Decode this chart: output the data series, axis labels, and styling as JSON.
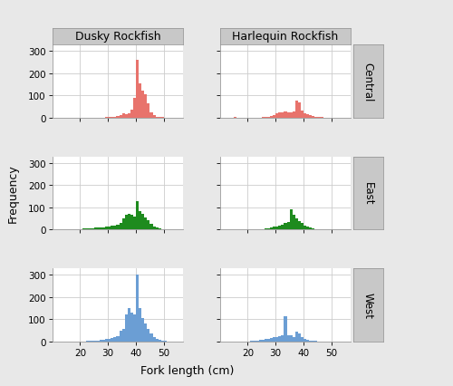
{
  "col_titles": [
    "Dusky Rockfish",
    "Harlequin Rockfish"
  ],
  "row_titles": [
    "Central",
    "East",
    "West"
  ],
  "xlabel": "Fork length (cm)",
  "ylabel": "Frequency",
  "xlim": [
    10,
    57
  ],
  "ylim": [
    0,
    330
  ],
  "yticks": [
    0,
    100,
    200,
    300
  ],
  "xticks": [
    20,
    30,
    40,
    50
  ],
  "colors": {
    "Central": "#E8736C",
    "East": "#1E8B1E",
    "West": "#6B9ED4"
  },
  "fig_bg": "#E8E8E8",
  "panel_bg": "#FFFFFF",
  "strip_bg": "#C8C8C8",
  "grid_color": "#CCCCCC",
  "histograms": {
    "Central_Dusky": {
      "bins": [
        10,
        11,
        12,
        13,
        14,
        15,
        16,
        17,
        18,
        19,
        20,
        21,
        22,
        23,
        24,
        25,
        26,
        27,
        28,
        29,
        30,
        31,
        32,
        33,
        34,
        35,
        36,
        37,
        38,
        39,
        40,
        41,
        42,
        43,
        44,
        45,
        46,
        47,
        48,
        49,
        50,
        51,
        52,
        53,
        54,
        55,
        56
      ],
      "counts": [
        0,
        0,
        0,
        0,
        0,
        0,
        0,
        0,
        0,
        0,
        0,
        0,
        0,
        0,
        0,
        0,
        0,
        0,
        0,
        2,
        3,
        4,
        5,
        8,
        12,
        18,
        15,
        20,
        35,
        90,
        260,
        155,
        120,
        105,
        65,
        25,
        12,
        5,
        3,
        2,
        1,
        0,
        0,
        0,
        0,
        0
      ]
    },
    "Central_Harlequin": {
      "bins": [
        10,
        11,
        12,
        13,
        14,
        15,
        16,
        17,
        18,
        19,
        20,
        21,
        22,
        23,
        24,
        25,
        26,
        27,
        28,
        29,
        30,
        31,
        32,
        33,
        34,
        35,
        36,
        37,
        38,
        39,
        40,
        41,
        42,
        43,
        44,
        45,
        46,
        47,
        48,
        49,
        50,
        51,
        52,
        53,
        54,
        55,
        56
      ],
      "counts": [
        0,
        0,
        0,
        0,
        0,
        3,
        0,
        0,
        0,
        0,
        0,
        0,
        0,
        0,
        0,
        3,
        4,
        5,
        8,
        12,
        18,
        22,
        25,
        28,
        25,
        25,
        28,
        78,
        68,
        30,
        20,
        15,
        12,
        8,
        5,
        3,
        2,
        1,
        0,
        0,
        0,
        0,
        0,
        0,
        0,
        0
      ]
    },
    "East_Dusky": {
      "bins": [
        10,
        11,
        12,
        13,
        14,
        15,
        16,
        17,
        18,
        19,
        20,
        21,
        22,
        23,
        24,
        25,
        26,
        27,
        28,
        29,
        30,
        31,
        32,
        33,
        34,
        35,
        36,
        37,
        38,
        39,
        40,
        41,
        42,
        43,
        44,
        45,
        46,
        47,
        48,
        49,
        50,
        51,
        52,
        53,
        54,
        55,
        56
      ],
      "counts": [
        0,
        0,
        0,
        0,
        0,
        0,
        0,
        0,
        0,
        2,
        3,
        4,
        5,
        6,
        7,
        8,
        9,
        10,
        11,
        12,
        14,
        16,
        18,
        22,
        28,
        50,
        67,
        72,
        68,
        58,
        130,
        82,
        72,
        56,
        42,
        26,
        13,
        8,
        5,
        3,
        2,
        1,
        0,
        0,
        0,
        0
      ]
    },
    "East_Harlequin": {
      "bins": [
        10,
        11,
        12,
        13,
        14,
        15,
        16,
        17,
        18,
        19,
        20,
        21,
        22,
        23,
        24,
        25,
        26,
        27,
        28,
        29,
        30,
        31,
        32,
        33,
        34,
        35,
        36,
        37,
        38,
        39,
        40,
        41,
        42,
        43,
        44,
        45,
        46,
        47,
        48,
        49,
        50,
        51,
        52,
        53,
        54,
        55,
        56
      ],
      "counts": [
        0,
        0,
        0,
        0,
        0,
        0,
        0,
        0,
        0,
        0,
        0,
        0,
        0,
        0,
        2,
        3,
        4,
        6,
        8,
        12,
        15,
        18,
        22,
        28,
        35,
        90,
        68,
        50,
        40,
        28,
        18,
        12,
        8,
        5,
        3,
        2,
        1,
        0,
        0,
        0,
        0,
        0,
        0,
        0,
        0,
        0
      ]
    },
    "West_Dusky": {
      "bins": [
        10,
        11,
        12,
        13,
        14,
        15,
        16,
        17,
        18,
        19,
        20,
        21,
        22,
        23,
        24,
        25,
        26,
        27,
        28,
        29,
        30,
        31,
        32,
        33,
        34,
        35,
        36,
        37,
        38,
        39,
        40,
        41,
        42,
        43,
        44,
        45,
        46,
        47,
        48,
        49,
        50,
        51,
        52,
        53,
        54,
        55,
        56
      ],
      "counts": [
        0,
        0,
        0,
        0,
        0,
        0,
        0,
        0,
        0,
        0,
        0,
        0,
        2,
        2,
        3,
        4,
        5,
        6,
        8,
        10,
        12,
        15,
        20,
        25,
        50,
        55,
        120,
        150,
        130,
        120,
        300,
        152,
        105,
        80,
        55,
        35,
        18,
        10,
        6,
        3,
        2,
        1,
        0,
        0,
        0,
        0
      ]
    },
    "West_Harlequin": {
      "bins": [
        10,
        11,
        12,
        13,
        14,
        15,
        16,
        17,
        18,
        19,
        20,
        21,
        22,
        23,
        24,
        25,
        26,
        27,
        28,
        29,
        30,
        31,
        32,
        33,
        34,
        35,
        36,
        37,
        38,
        39,
        40,
        41,
        42,
        43,
        44,
        45,
        46,
        47,
        48,
        49,
        50,
        51,
        52,
        53,
        54,
        55,
        56
      ],
      "counts": [
        0,
        0,
        0,
        0,
        0,
        0,
        0,
        0,
        0,
        0,
        0,
        2,
        3,
        4,
        6,
        8,
        10,
        12,
        15,
        20,
        22,
        25,
        30,
        112,
        30,
        28,
        22,
        45,
        38,
        22,
        12,
        8,
        5,
        3,
        2,
        1,
        0,
        0,
        0,
        0,
        0,
        0,
        0,
        0,
        0,
        0
      ]
    }
  }
}
